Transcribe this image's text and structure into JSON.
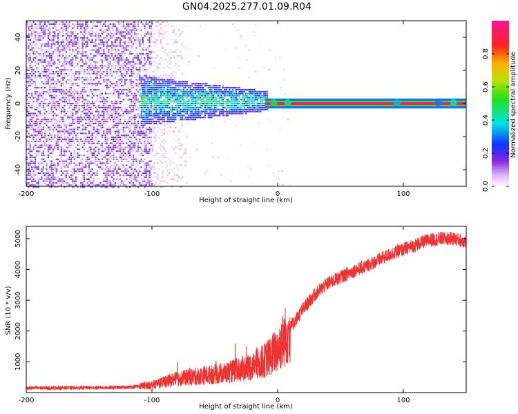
{
  "title": "GN04.2025.277.01.09.R04",
  "chart_data": [
    {
      "type": "heatmap",
      "name": "spectrogram",
      "xlabel": "Height of straight line (km)",
      "ylabel": "Frequency (Hz)",
      "xlim": [
        -200,
        150
      ],
      "ylim": [
        -50,
        50
      ],
      "xticks": [
        -200,
        -100,
        0,
        100
      ],
      "yticks": [
        -40,
        -20,
        0,
        20,
        40
      ],
      "colorbar": {
        "label": "Normalized spectral amplitude",
        "range": [
          0,
          1
        ],
        "ticks": [
          0.0,
          0.2,
          0.4,
          0.6,
          0.8
        ],
        "tick_labels": [
          "0.0",
          "0.2",
          "0.4",
          "0.6",
          "0.8"
        ],
        "colormap": "rainbow-white"
      },
      "regions": [
        {
          "description": "broadband noise",
          "x_range": [
            -200,
            -100
          ],
          "freq_range": [
            -50,
            50
          ],
          "amplitude": 0.1
        },
        {
          "description": "narrowing blob",
          "x_range": [
            -110,
            -10
          ],
          "freq_range": [
            -10,
            15
          ],
          "amplitude": 0.35
        },
        {
          "description": "carrier line",
          "x_range": [
            -10,
            150
          ],
          "freq": 0,
          "amplitude": 0.95
        }
      ]
    },
    {
      "type": "line",
      "name": "snr",
      "xlabel": "Height of straight line (km)",
      "ylabel": "SNR (10 * v/v)",
      "xlim": [
        -200,
        150
      ],
      "ylim": [
        0,
        5400
      ],
      "xticks": [
        -200,
        -100,
        0,
        100
      ],
      "yticks": [
        1000,
        2000,
        3000,
        4000,
        5000
      ],
      "color": "#ee3333",
      "series": [
        {
          "name": "SNR envelope",
          "x": [
            -200,
            -150,
            -120,
            -100,
            -80,
            -60,
            -40,
            -20,
            -10,
            0,
            10,
            20,
            30,
            40,
            50,
            60,
            70,
            80,
            90,
            100,
            110,
            120,
            130,
            140,
            150
          ],
          "values": [
            150,
            160,
            170,
            250,
            450,
            550,
            650,
            850,
            1050,
            1400,
            2100,
            2700,
            3200,
            3550,
            3750,
            3950,
            4100,
            4300,
            4500,
            4650,
            4800,
            4950,
            5000,
            5000,
            4900
          ]
        }
      ]
    }
  ]
}
